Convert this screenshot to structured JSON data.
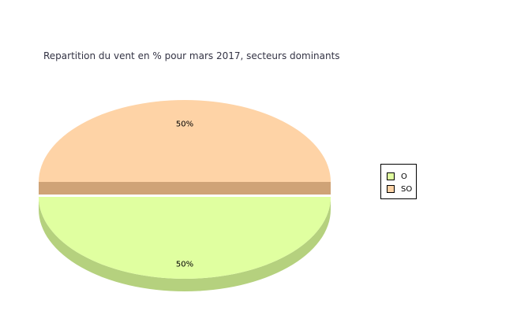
{
  "chart_data": {
    "type": "pie",
    "title": "Repartition du vent en % pour mars 2017, secteurs dominants",
    "categories": [
      "O",
      "SO"
    ],
    "values": [
      50,
      50
    ],
    "labels": [
      "50%",
      "50%"
    ],
    "colors": {
      "O": "#e0ffa0",
      "O_side": "#b5d17e",
      "SO": "#fed3a6",
      "SO_side": "#cfa377"
    },
    "legend_position": "right",
    "style": "3d-exploded"
  }
}
